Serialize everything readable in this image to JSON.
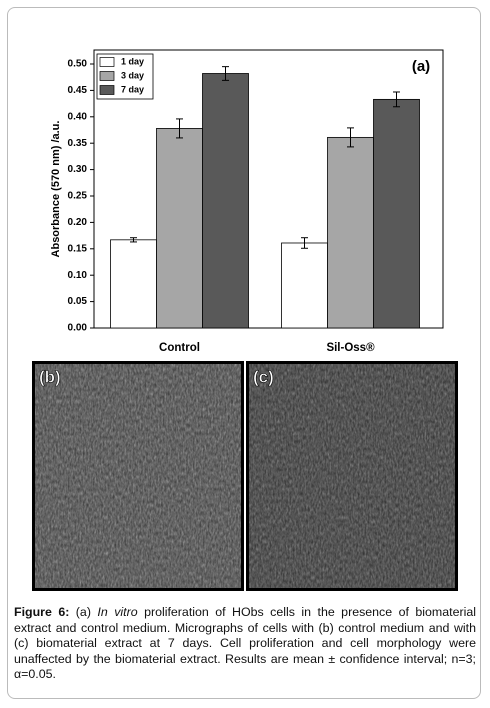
{
  "chart_data": {
    "type": "bar",
    "annotation": "(a)",
    "y_label": "Absorbance (570 nm) /a.u.",
    "categories": [
      "Control",
      "Sil-Oss®"
    ],
    "series": [
      {
        "name": "1 day",
        "color": "#ffffff",
        "values": [
          0.167,
          0.161
        ],
        "errors": [
          0.004,
          0.01
        ]
      },
      {
        "name": "3 day",
        "color": "#a6a6a6",
        "values": [
          0.378,
          0.361
        ],
        "errors": [
          0.018,
          0.018
        ]
      },
      {
        "name": "7 day",
        "color": "#595959",
        "values": [
          0.482,
          0.433
        ],
        "errors": [
          0.013,
          0.014
        ]
      }
    ],
    "ylim": [
      0,
      0.5
    ],
    "yticks": [
      {
        "value": 0,
        "label": "0.00"
      },
      {
        "value": 0.05,
        "label": "0.05"
      },
      {
        "value": 0.1,
        "label": "0.10"
      },
      {
        "value": 0.15,
        "label": "0.15"
      },
      {
        "value": 0.2,
        "label": "0.20"
      },
      {
        "value": 0.25,
        "label": "0.25"
      },
      {
        "value": 0.3,
        "label": "0.30"
      },
      {
        "value": 0.35,
        "label": "0.35"
      },
      {
        "value": 0.4,
        "label": "0.40"
      },
      {
        "value": 0.45,
        "label": "0.45"
      },
      {
        "value": 0.5,
        "label": "0.50"
      }
    ],
    "legend": "top-left"
  },
  "panels": [
    {
      "label": "(b)"
    },
    {
      "label": "(c)"
    }
  ],
  "caption": {
    "label": "Figure 6:",
    "text_1": "(a)",
    "italic": "In vitro",
    "text_2": "proliferation of HObs cells in the presence of biomaterial extract and control medium. Micrographs of cells with (b) control medium and with (c) biomaterial extract at 7 days. Cell proliferation and cell morphology were unaffected by the biomaterial extract. Results are mean ± confidence interval; n=3; α=0.05."
  }
}
